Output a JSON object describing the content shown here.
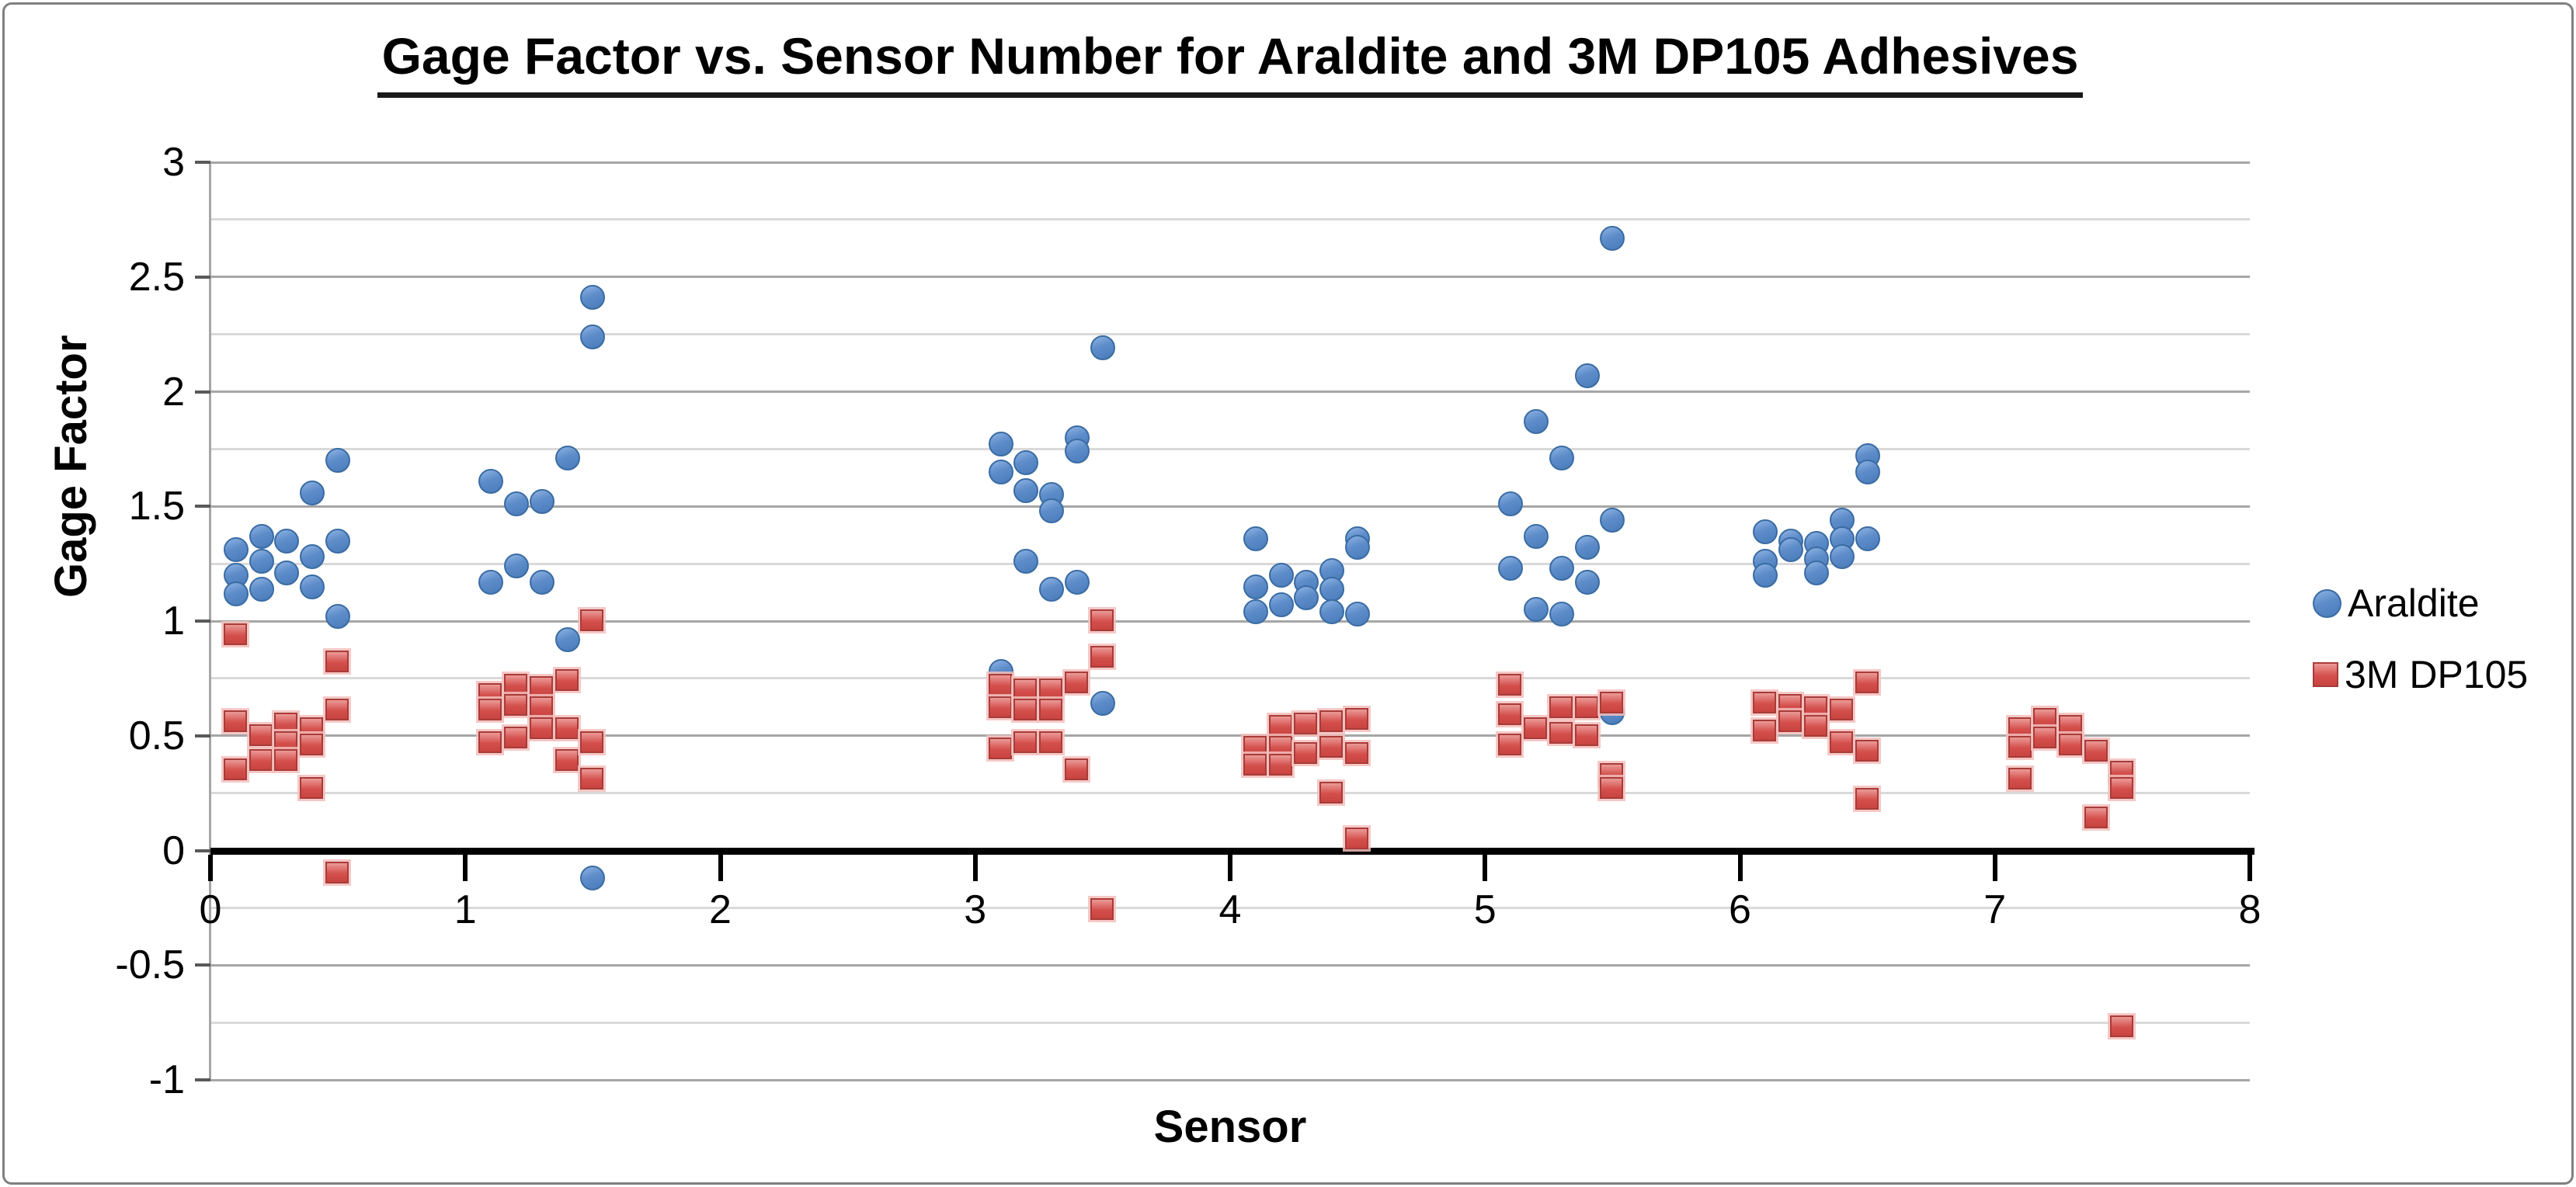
{
  "colors": {
    "araldite_fill": "#5d8cc9",
    "araldite_border": "#3a6ca3",
    "dp105_fill": "#d4504d",
    "dp105_border": "#a83c39",
    "grid_major": "#a6a6a6",
    "grid_minor": "#d9d9d9",
    "zero_line": "#000000",
    "frame_border": "#808080",
    "text": "#000000"
  },
  "chart_data": {
    "type": "scatter",
    "title": "Gage Factor vs. Sensor Number for Araldite and 3M DP105 Adhesives",
    "xlabel": "Sensor",
    "ylabel": "Gage Factor",
    "xlim": [
      0,
      8
    ],
    "ylim": [
      -1,
      3
    ],
    "x_ticks": [
      "0",
      "1",
      "2",
      "3",
      "4",
      "5",
      "6",
      "7",
      "8"
    ],
    "y_ticks": [
      "3",
      "2.5",
      "2",
      "1.5",
      "1",
      "0.5",
      "0",
      "-0.5",
      "-1"
    ],
    "y_minor_step": 0.25,
    "grid": true,
    "legend_position": "right-outside",
    "series": [
      {
        "name": "Araldite",
        "marker": "circle",
        "color": "#5d8cc9",
        "points": [
          [
            0.1,
            1.31
          ],
          [
            0.1,
            1.2
          ],
          [
            0.1,
            1.12
          ],
          [
            0.2,
            1.37
          ],
          [
            0.2,
            1.26
          ],
          [
            0.2,
            1.14
          ],
          [
            0.3,
            1.35
          ],
          [
            0.3,
            1.21
          ],
          [
            0.4,
            1.56
          ],
          [
            0.4,
            1.28
          ],
          [
            0.4,
            1.15
          ],
          [
            0.5,
            1.7
          ],
          [
            0.5,
            1.35
          ],
          [
            0.5,
            1.02
          ],
          [
            1.1,
            1.61
          ],
          [
            1.1,
            1.17
          ],
          [
            1.2,
            1.51
          ],
          [
            1.2,
            1.24
          ],
          [
            1.3,
            1.52
          ],
          [
            1.3,
            1.17
          ],
          [
            1.4,
            1.71
          ],
          [
            1.4,
            0.92
          ],
          [
            1.5,
            2.41
          ],
          [
            1.5,
            2.24
          ],
          [
            1.5,
            -0.12
          ],
          [
            3.1,
            1.77
          ],
          [
            3.1,
            1.65
          ],
          [
            3.1,
            0.78
          ],
          [
            3.2,
            1.69
          ],
          [
            3.2,
            1.57
          ],
          [
            3.2,
            1.26
          ],
          [
            3.3,
            1.55
          ],
          [
            3.3,
            1.48
          ],
          [
            3.3,
            1.14
          ],
          [
            3.4,
            1.8
          ],
          [
            3.4,
            1.74
          ],
          [
            3.4,
            1.17
          ],
          [
            3.5,
            2.19
          ],
          [
            3.5,
            0.64
          ],
          [
            4.1,
            1.36
          ],
          [
            4.1,
            1.15
          ],
          [
            4.1,
            1.04
          ],
          [
            4.2,
            1.2
          ],
          [
            4.2,
            1.07
          ],
          [
            4.3,
            1.17
          ],
          [
            4.3,
            1.1
          ],
          [
            4.4,
            1.22
          ],
          [
            4.4,
            1.14
          ],
          [
            4.4,
            1.04
          ],
          [
            4.5,
            1.36
          ],
          [
            4.5,
            1.32
          ],
          [
            4.5,
            1.03
          ],
          [
            5.1,
            1.51
          ],
          [
            5.1,
            1.23
          ],
          [
            5.2,
            1.87
          ],
          [
            5.2,
            1.37
          ],
          [
            5.2,
            1.05
          ],
          [
            5.3,
            1.71
          ],
          [
            5.3,
            1.23
          ],
          [
            5.3,
            1.03
          ],
          [
            5.4,
            2.07
          ],
          [
            5.4,
            1.32
          ],
          [
            5.4,
            1.17
          ],
          [
            5.5,
            2.67
          ],
          [
            5.5,
            1.44
          ],
          [
            5.5,
            0.6
          ],
          [
            6.1,
            1.39
          ],
          [
            6.1,
            1.26
          ],
          [
            6.1,
            1.2
          ],
          [
            6.2,
            1.35
          ],
          [
            6.2,
            1.31
          ],
          [
            6.3,
            1.34
          ],
          [
            6.3,
            1.27
          ],
          [
            6.3,
            1.21
          ],
          [
            6.4,
            1.44
          ],
          [
            6.4,
            1.36
          ],
          [
            6.4,
            1.28
          ],
          [
            6.5,
            1.72
          ],
          [
            6.5,
            1.65
          ],
          [
            6.5,
            1.36
          ]
        ]
      },
      {
        "name": "3M DP105",
        "marker": "square",
        "color": "#d4504d",
        "points": [
          [
            0.1,
            0.94
          ],
          [
            0.1,
            0.56
          ],
          [
            0.1,
            0.35
          ],
          [
            0.2,
            0.5
          ],
          [
            0.2,
            0.39
          ],
          [
            0.3,
            0.55
          ],
          [
            0.3,
            0.47
          ],
          [
            0.3,
            0.39
          ],
          [
            0.4,
            0.53
          ],
          [
            0.4,
            0.46
          ],
          [
            0.4,
            0.27
          ],
          [
            0.5,
            0.82
          ],
          [
            0.5,
            0.61
          ],
          [
            0.5,
            -0.1
          ],
          [
            1.1,
            0.68
          ],
          [
            1.1,
            0.61
          ],
          [
            1.1,
            0.47
          ],
          [
            1.2,
            0.72
          ],
          [
            1.2,
            0.63
          ],
          [
            1.2,
            0.49
          ],
          [
            1.3,
            0.71
          ],
          [
            1.3,
            0.62
          ],
          [
            1.3,
            0.53
          ],
          [
            1.4,
            0.74
          ],
          [
            1.4,
            0.53
          ],
          [
            1.4,
            0.39
          ],
          [
            1.5,
            1.0
          ],
          [
            1.5,
            0.47
          ],
          [
            1.5,
            0.31
          ],
          [
            3.1,
            0.72
          ],
          [
            3.1,
            0.62
          ],
          [
            3.1,
            0.44
          ],
          [
            3.2,
            0.7
          ],
          [
            3.2,
            0.61
          ],
          [
            3.2,
            0.47
          ],
          [
            3.3,
            0.7
          ],
          [
            3.3,
            0.61
          ],
          [
            3.3,
            0.47
          ],
          [
            3.4,
            0.73
          ],
          [
            3.4,
            0.35
          ],
          [
            3.5,
            1.0
          ],
          [
            3.5,
            0.84
          ],
          [
            3.5,
            -0.26
          ],
          [
            4.1,
            0.45
          ],
          [
            4.1,
            0.37
          ],
          [
            4.2,
            0.54
          ],
          [
            4.2,
            0.45
          ],
          [
            4.2,
            0.37
          ],
          [
            4.3,
            0.55
          ],
          [
            4.3,
            0.42
          ],
          [
            4.4,
            0.56
          ],
          [
            4.4,
            0.45
          ],
          [
            4.4,
            0.25
          ],
          [
            4.5,
            0.57
          ],
          [
            4.5,
            0.42
          ],
          [
            4.5,
            0.05
          ],
          [
            5.1,
            0.72
          ],
          [
            5.1,
            0.59
          ],
          [
            5.1,
            0.46
          ],
          [
            5.2,
            0.53
          ],
          [
            5.3,
            0.62
          ],
          [
            5.3,
            0.51
          ],
          [
            5.4,
            0.62
          ],
          [
            5.4,
            0.5
          ],
          [
            5.5,
            0.64
          ],
          [
            5.5,
            0.33
          ],
          [
            5.5,
            0.27
          ],
          [
            6.1,
            0.64
          ],
          [
            6.1,
            0.52
          ],
          [
            6.2,
            0.63
          ],
          [
            6.2,
            0.56
          ],
          [
            6.3,
            0.62
          ],
          [
            6.3,
            0.54
          ],
          [
            6.4,
            0.61
          ],
          [
            6.4,
            0.47
          ],
          [
            6.5,
            0.73
          ],
          [
            6.5,
            0.43
          ],
          [
            6.5,
            0.22
          ],
          [
            7.1,
            0.53
          ],
          [
            7.1,
            0.45
          ],
          [
            7.1,
            0.31
          ],
          [
            7.2,
            0.57
          ],
          [
            7.2,
            0.49
          ],
          [
            7.3,
            0.54
          ],
          [
            7.3,
            0.46
          ],
          [
            7.4,
            0.43
          ],
          [
            7.4,
            0.14
          ],
          [
            7.5,
            0.34
          ],
          [
            7.5,
            0.27
          ],
          [
            7.5,
            -0.77
          ]
        ]
      }
    ]
  }
}
